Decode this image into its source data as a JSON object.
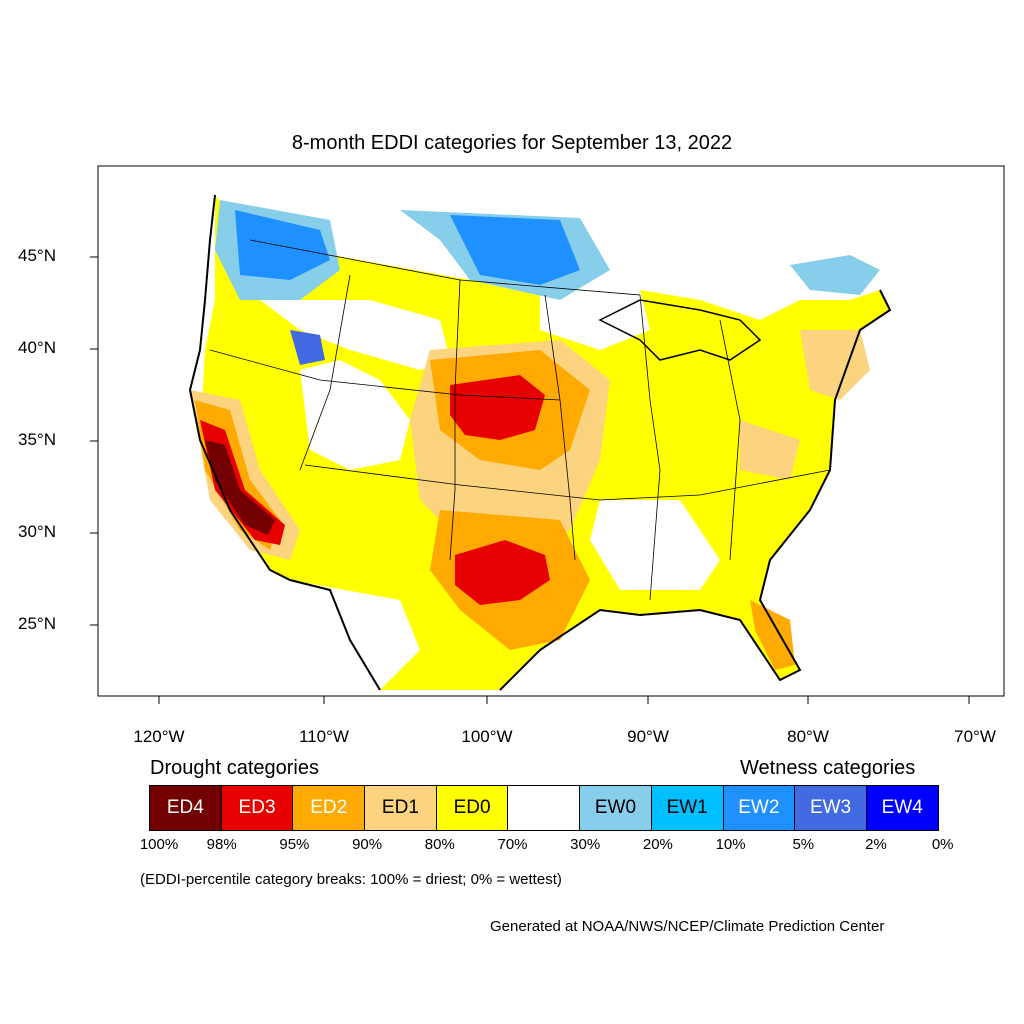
{
  "title": "8-month EDDI categories for September 13, 2022",
  "latitude_labels": [
    "45°N",
    "40°N",
    "35°N",
    "30°N",
    "25°N"
  ],
  "longitude_labels": [
    "120°W",
    "110°W",
    "100°W",
    "90°W",
    "80°W",
    "70°W"
  ],
  "legend": {
    "drought_heading": "Drought categories",
    "wetness_heading": "Wetness categories",
    "categories": [
      {
        "label": "ED4",
        "color": "#730000",
        "text_color": "#ffffff"
      },
      {
        "label": "ED3",
        "color": "#e60000",
        "text_color": "#ffffff"
      },
      {
        "label": "ED2",
        "color": "#ffaa00",
        "text_color": "#ffffff"
      },
      {
        "label": "ED1",
        "color": "#fcd37f",
        "text_color": "#000000"
      },
      {
        "label": "ED0",
        "color": "#ffff00",
        "text_color": "#000000"
      },
      {
        "label": "",
        "color": "#ffffff",
        "text_color": "#000000"
      },
      {
        "label": "EW0",
        "color": "#87ceeb",
        "text_color": "#000000"
      },
      {
        "label": "EW1",
        "color": "#00bfff",
        "text_color": "#000000"
      },
      {
        "label": "EW2",
        "color": "#1e90ff",
        "text_color": "#ffffff"
      },
      {
        "label": "EW3",
        "color": "#4169e1",
        "text_color": "#ffffff"
      },
      {
        "label": "EW4",
        "color": "#0000ff",
        "text_color": "#ffffff"
      }
    ],
    "breaks": [
      "100%",
      "98%",
      "95%",
      "90%",
      "80%",
      "70%",
      "30%",
      "20%",
      "10%",
      "5%",
      "2%",
      "0%"
    ]
  },
  "note": "(EDDI-percentile category breaks: 100% = driest; 0% = wettest)",
  "credit": "Generated at NOAA/NWS/NCEP/Climate Prediction Center"
}
